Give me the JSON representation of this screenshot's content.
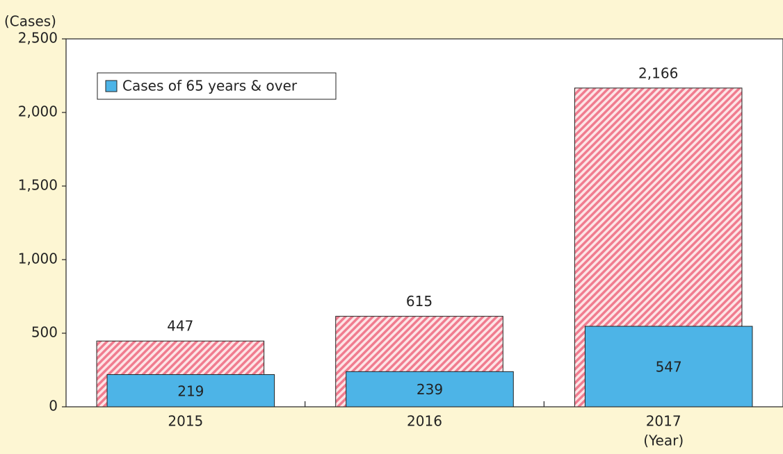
{
  "chart_data": {
    "type": "overlap_bar",
    "y_label": "(Cases)",
    "x_label": "(Year)",
    "categories": [
      "2015",
      "2016",
      "2017"
    ],
    "series": [
      {
        "color": "#f07c8f",
        "values": [
          447,
          615,
          2166
        ],
        "value_labels": [
          "447",
          "615",
          "2,166"
        ]
      },
      {
        "name": "Cases of 65 years & over",
        "color": "#4db4e7",
        "values": [
          219,
          239,
          547
        ]
      }
    ],
    "ylim": [
      0,
      2500
    ],
    "yticks": [
      0,
      500,
      {
        "value": 1000,
        "label": "1,000"
      },
      {
        "value": 1500,
        "label": "1,500"
      },
      {
        "value": 2000,
        "label": "2,000"
      },
      {
        "value": 2500,
        "label": "2,500"
      }
    ],
    "legend": "upper left"
  }
}
